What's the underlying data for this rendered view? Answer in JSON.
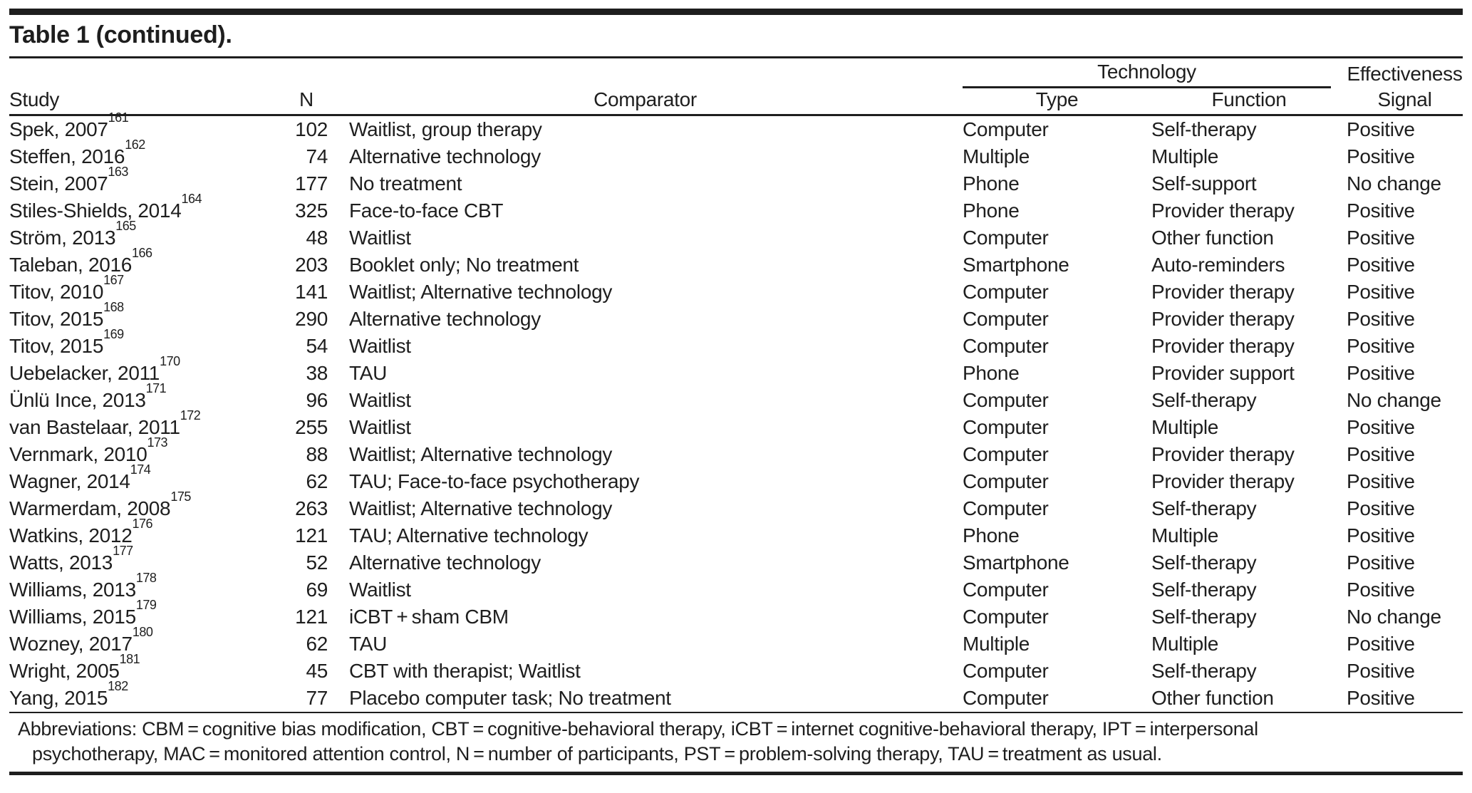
{
  "title": "Table 1 (continued).",
  "colors": {
    "text": "#1e1e1e",
    "background": "#ffffff",
    "rule": "#1e1e1e"
  },
  "table": {
    "headers": {
      "study": "Study",
      "n": "N",
      "comparator": "Comparator",
      "technology_group": "Technology",
      "type": "Type",
      "function": "Function",
      "effectiveness_line1": "Effectiveness",
      "effectiveness_line2": "Signal"
    },
    "rows": [
      {
        "study": "Spek, 2007",
        "ref": "161",
        "n": "102",
        "comparator": "Waitlist, group therapy",
        "type": "Computer",
        "function": "Self-therapy",
        "signal": "Positive"
      },
      {
        "study": "Steffen, 2016",
        "ref": "162",
        "n": "74",
        "comparator": "Alternative technology",
        "type": "Multiple",
        "function": "Multiple",
        "signal": "Positive"
      },
      {
        "study": "Stein, 2007",
        "ref": "163",
        "n": "177",
        "comparator": "No treatment",
        "type": "Phone",
        "function": "Self-support",
        "signal": "No change"
      },
      {
        "study": "Stiles-Shields, 2014",
        "ref": "164",
        "n": "325",
        "comparator": "Face-to-face CBT",
        "type": "Phone",
        "function": "Provider therapy",
        "signal": "Positive"
      },
      {
        "study": "Ström, 2013",
        "ref": "165",
        "n": "48",
        "comparator": "Waitlist",
        "type": "Computer",
        "function": "Other function",
        "signal": "Positive"
      },
      {
        "study": "Taleban, 2016",
        "ref": "166",
        "n": "203",
        "comparator": "Booklet only; No treatment",
        "type": "Smartphone",
        "function": "Auto-reminders",
        "signal": "Positive"
      },
      {
        "study": "Titov, 2010",
        "ref": "167",
        "n": "141",
        "comparator": "Waitlist; Alternative technology",
        "type": "Computer",
        "function": "Provider therapy",
        "signal": "Positive"
      },
      {
        "study": "Titov, 2015",
        "ref": "168",
        "n": "290",
        "comparator": "Alternative technology",
        "type": "Computer",
        "function": "Provider therapy",
        "signal": "Positive"
      },
      {
        "study": "Titov, 2015",
        "ref": "169",
        "n": "54",
        "comparator": "Waitlist",
        "type": "Computer",
        "function": "Provider therapy",
        "signal": "Positive"
      },
      {
        "study": "Uebelacker, 2011",
        "ref": "170",
        "n": "38",
        "comparator": "TAU",
        "type": "Phone",
        "function": "Provider support",
        "signal": "Positive"
      },
      {
        "study": "Ünlü Ince, 2013",
        "ref": "171",
        "n": "96",
        "comparator": "Waitlist",
        "type": "Computer",
        "function": "Self-therapy",
        "signal": "No change"
      },
      {
        "study": "van Bastelaar, 2011",
        "ref": "172",
        "n": "255",
        "comparator": "Waitlist",
        "type": "Computer",
        "function": "Multiple",
        "signal": "Positive"
      },
      {
        "study": "Vernmark, 2010",
        "ref": "173",
        "n": "88",
        "comparator": "Waitlist; Alternative technology",
        "type": "Computer",
        "function": "Provider therapy",
        "signal": "Positive"
      },
      {
        "study": "Wagner, 2014",
        "ref": "174",
        "n": "62",
        "comparator": "TAU; Face-to-face psychotherapy",
        "type": "Computer",
        "function": "Provider therapy",
        "signal": "Positive"
      },
      {
        "study": "Warmerdam, 2008",
        "ref": "175",
        "n": "263",
        "comparator": "Waitlist; Alternative technology",
        "type": "Computer",
        "function": "Self-therapy",
        "signal": "Positive"
      },
      {
        "study": "Watkins, 2012",
        "ref": "176",
        "n": "121",
        "comparator": "TAU; Alternative technology",
        "type": "Phone",
        "function": "Multiple",
        "signal": "Positive"
      },
      {
        "study": "Watts, 2013",
        "ref": "177",
        "n": "52",
        "comparator": "Alternative technology",
        "type": "Smartphone",
        "function": "Self-therapy",
        "signal": "Positive"
      },
      {
        "study": "Williams, 2013",
        "ref": "178",
        "n": "69",
        "comparator": "Waitlist",
        "type": "Computer",
        "function": "Self-therapy",
        "signal": "Positive"
      },
      {
        "study": "Williams, 2015",
        "ref": "179",
        "n": "121",
        "comparator": "iCBT + sham CBM",
        "type": "Computer",
        "function": "Self-therapy",
        "signal": "No change"
      },
      {
        "study": "Wozney, 2017",
        "ref": "180",
        "n": "62",
        "comparator": "TAU",
        "type": "Multiple",
        "function": "Multiple",
        "signal": "Positive"
      },
      {
        "study": "Wright, 2005",
        "ref": "181",
        "n": "45",
        "comparator": "CBT with therapist; Waitlist",
        "type": "Computer",
        "function": "Self-therapy",
        "signal": "Positive"
      },
      {
        "study": "Yang, 2015",
        "ref": "182",
        "n": "77",
        "comparator": "Placebo computer task; No treatment",
        "type": "Computer",
        "function": "Other function",
        "signal": "Positive"
      }
    ]
  },
  "footnote": {
    "line1": "Abbreviations: CBM = cognitive bias modification, CBT = cognitive-behavioral therapy, iCBT = internet cognitive-behavioral therapy, IPT = interpersonal",
    "line2": "psychotherapy, MAC = monitored attention control, N = number of participants, PST = problem-solving therapy, TAU = treatment as usual."
  }
}
